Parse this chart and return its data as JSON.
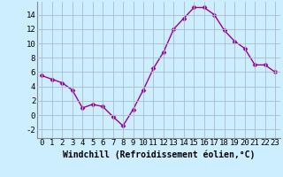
{
  "x": [
    0,
    1,
    2,
    3,
    4,
    5,
    6,
    7,
    8,
    9,
    10,
    11,
    12,
    13,
    14,
    15,
    16,
    17,
    18,
    19,
    20,
    21,
    22,
    23
  ],
  "y": [
    5.5,
    5.0,
    4.5,
    3.5,
    1.0,
    1.5,
    1.2,
    -0.2,
    -1.5,
    0.8,
    3.5,
    6.5,
    8.8,
    12.0,
    13.5,
    15.0,
    15.0,
    14.0,
    11.8,
    10.3,
    9.3,
    7.0,
    7.0,
    6.0
  ],
  "line_color": "#990099",
  "marker": "D",
  "marker_size": 2.5,
  "bg_color": "#cceeff",
  "grid_color": "#aabbcc",
  "xlabel": "Windchill (Refroidissement éolien,°C)",
  "xlabel_fontsize": 7,
  "ylabel_ticks": [
    -2,
    0,
    2,
    4,
    6,
    8,
    10,
    12,
    14
  ],
  "xlim": [
    -0.5,
    23.5
  ],
  "ylim": [
    -3.2,
    15.8
  ],
  "tick_fontsize": 6.5,
  "line_width": 1.0
}
